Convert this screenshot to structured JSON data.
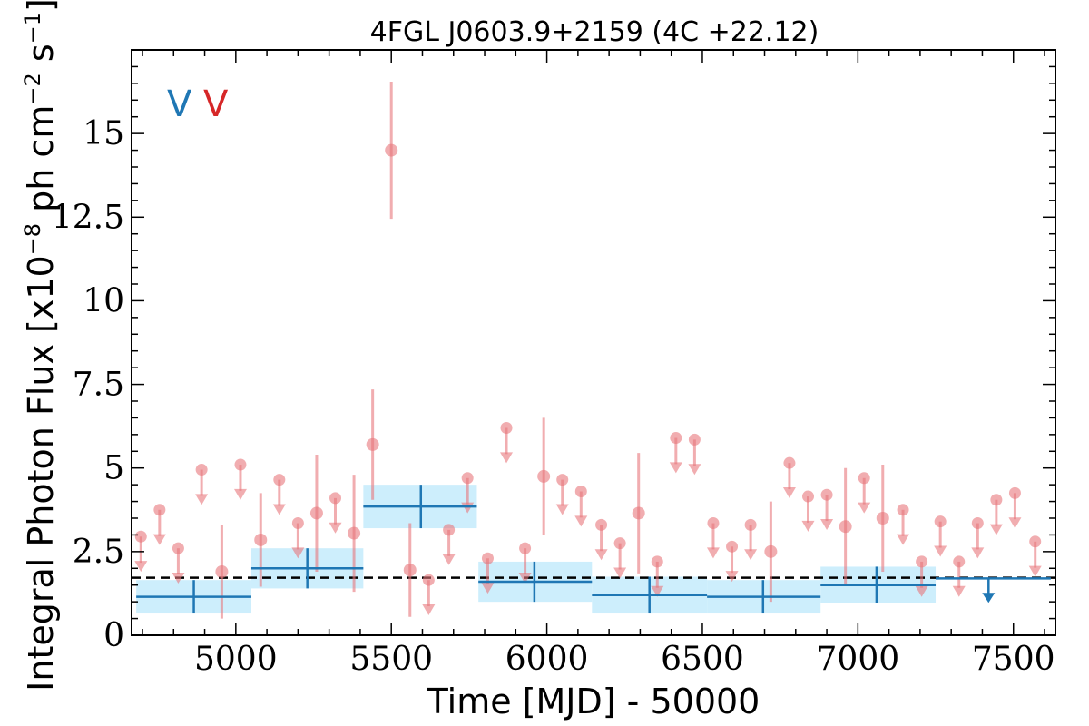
{
  "chart_data": {
    "type": "scatter",
    "title": "4FGL J0603.9+2159 (4C +22.12)",
    "xlabel": "Time [MJD] - 50000",
    "ylabel": "Integral Photon Flux [x10$^{-8}$ ph cm$^{-2}$ s$^{-1}$]",
    "ylabel_parts": {
      "pre": "Integral Photon Flux [x10",
      "exp1": "−8",
      "mid": " ph cm",
      "exp2": "−2",
      "mid2": " s",
      "exp3": "−1",
      "post": "]"
    },
    "xlim": [
      4665,
      7635
    ],
    "ylim": [
      0,
      17.5
    ],
    "xticks": [
      5000,
      5500,
      6000,
      6500,
      7000,
      7500
    ],
    "xtick_labels": [
      "5000",
      "5500",
      "6000",
      "6500",
      "7000",
      "7500"
    ],
    "yticks": [
      0,
      2.5,
      5,
      7.5,
      10,
      12.5,
      15
    ],
    "ytick_labels": [
      "0",
      "2.5",
      "5",
      "7.5",
      "10",
      "12.5",
      "15"
    ],
    "legend_labels": [
      {
        "text": "V",
        "color": "#1f77b4"
      },
      {
        "text": "V",
        "color": "#d62728"
      }
    ],
    "colors": {
      "fine": "#e8777b",
      "coarse": "#1f77b4",
      "band": "#cdeefc",
      "mean": "#000000"
    },
    "mean_flux": 1.72,
    "fine_points": [
      {
        "x": 4695,
        "y": 2.95,
        "ul": true
      },
      {
        "x": 4755,
        "y": 3.75,
        "ul": true
      },
      {
        "x": 4815,
        "y": 2.6,
        "ul": true
      },
      {
        "x": 4890,
        "y": 4.95,
        "ul": true
      },
      {
        "x": 4955,
        "y": 1.9,
        "err": 1.4
      },
      {
        "x": 5015,
        "y": 5.1,
        "ul": true
      },
      {
        "x": 5080,
        "y": 2.85,
        "err": 1.4
      },
      {
        "x": 5140,
        "y": 4.65,
        "ul": true
      },
      {
        "x": 5200,
        "y": 3.35,
        "ul": true
      },
      {
        "x": 5260,
        "y": 3.65,
        "err": 1.75
      },
      {
        "x": 5320,
        "y": 4.1,
        "ul": true
      },
      {
        "x": 5380,
        "y": 3.05,
        "err": 1.75
      },
      {
        "x": 5440,
        "y": 5.7,
        "err": 1.65
      },
      {
        "x": 5500,
        "y": 14.5,
        "err": 2.05
      },
      {
        "x": 5560,
        "y": 1.95,
        "err": 1.4
      },
      {
        "x": 5620,
        "y": 1.65,
        "ul": true
      },
      {
        "x": 5685,
        "y": 3.15,
        "ul": true
      },
      {
        "x": 5745,
        "y": 4.7,
        "ul": true
      },
      {
        "x": 5810,
        "y": 2.3,
        "ul": true
      },
      {
        "x": 5870,
        "y": 6.2,
        "ul": true
      },
      {
        "x": 5930,
        "y": 2.6,
        "ul": true
      },
      {
        "x": 5990,
        "y": 4.75,
        "err": 1.75
      },
      {
        "x": 6050,
        "y": 4.65,
        "ul": true
      },
      {
        "x": 6110,
        "y": 4.3,
        "ul": true
      },
      {
        "x": 6175,
        "y": 3.3,
        "ul": true
      },
      {
        "x": 6235,
        "y": 2.75,
        "ul": true
      },
      {
        "x": 6295,
        "y": 3.65,
        "err": 1.8
      },
      {
        "x": 6355,
        "y": 2.2,
        "ul": true
      },
      {
        "x": 6415,
        "y": 5.9,
        "ul": true
      },
      {
        "x": 6475,
        "y": 5.85,
        "ul": true
      },
      {
        "x": 6535,
        "y": 3.35,
        "ul": true
      },
      {
        "x": 6595,
        "y": 2.65,
        "ul": true
      },
      {
        "x": 6655,
        "y": 3.3,
        "ul": true
      },
      {
        "x": 6720,
        "y": 2.5,
        "err": 1.5
      },
      {
        "x": 6780,
        "y": 5.15,
        "ul": true
      },
      {
        "x": 6840,
        "y": 4.15,
        "ul": true
      },
      {
        "x": 6900,
        "y": 4.2,
        "ul": true
      },
      {
        "x": 6960,
        "y": 3.25,
        "err": 1.75
      },
      {
        "x": 7020,
        "y": 4.7,
        "ul": true
      },
      {
        "x": 7080,
        "y": 3.5,
        "err": 1.6
      },
      {
        "x": 7145,
        "y": 3.75,
        "ul": true
      },
      {
        "x": 7205,
        "y": 2.2,
        "ul": true
      },
      {
        "x": 7265,
        "y": 3.4,
        "ul": true
      },
      {
        "x": 7325,
        "y": 2.2,
        "ul": true
      },
      {
        "x": 7385,
        "y": 3.35,
        "ul": true
      },
      {
        "x": 7445,
        "y": 4.05,
        "ul": true
      },
      {
        "x": 7505,
        "y": 4.25,
        "ul": true
      },
      {
        "x": 7570,
        "y": 2.8,
        "ul": true
      }
    ],
    "coarse_bins": [
      {
        "x0": 4680,
        "x1": 5050,
        "xc": 4865,
        "y": 1.15,
        "err": 0.5
      },
      {
        "x0": 5050,
        "x1": 5410,
        "xc": 5230,
        "y": 2.0,
        "err": 0.6
      },
      {
        "x0": 5410,
        "x1": 5775,
        "xc": 5595,
        "y": 3.85,
        "err": 0.65
      },
      {
        "x0": 5780,
        "x1": 6145,
        "xc": 5960,
        "y": 1.6,
        "err": 0.6
      },
      {
        "x0": 6145,
        "x1": 6515,
        "xc": 6330,
        "y": 1.2,
        "err": 0.55
      },
      {
        "x0": 6515,
        "x1": 6880,
        "xc": 6695,
        "y": 1.15,
        "err": 0.5
      },
      {
        "x0": 6880,
        "x1": 7250,
        "xc": 7060,
        "y": 1.5,
        "err": 0.55
      }
    ],
    "coarse_upper_limit": {
      "x0": 7250,
      "x1": 7620,
      "xc": 7420,
      "y": 1.7
    }
  }
}
